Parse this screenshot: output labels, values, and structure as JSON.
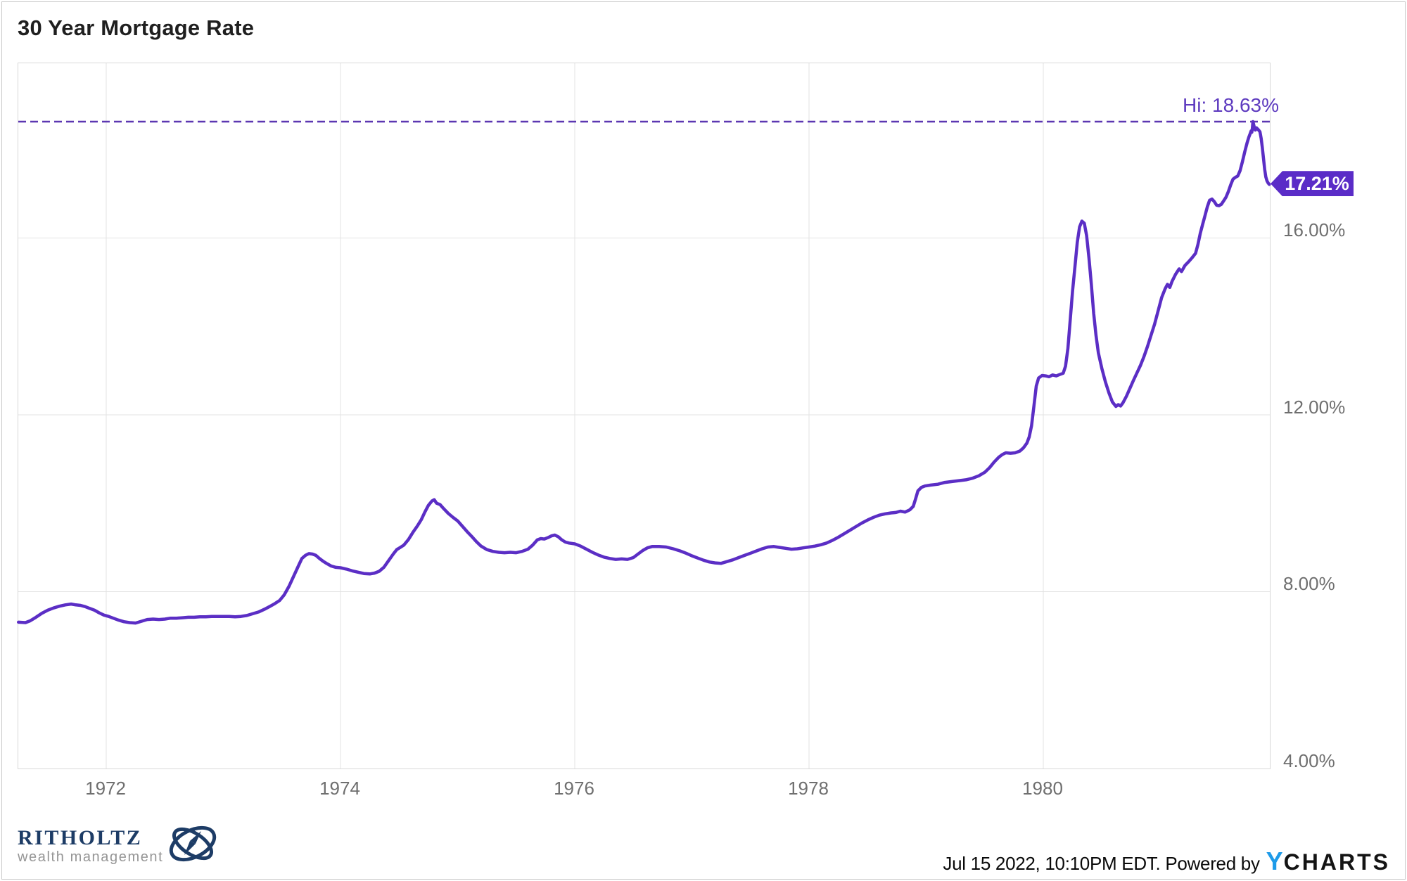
{
  "chart_data": {
    "type": "line",
    "title": "30 Year Mortgage Rate",
    "xlabel": "",
    "ylabel": "",
    "x_min": 1971.249,
    "x_max": 1981.934,
    "y_axis_top": 19.95,
    "y_axis_bottom": 4.0,
    "grid": true,
    "line_color": "#5b2ec5",
    "grid_color": "#e3e3e3",
    "dash_color": "#5c37b1",
    "hi_text_color": "#5e3bbf",
    "badge_color": "#5a2cc7",
    "x_ticks": [
      {
        "label": "1972",
        "value": 1972
      },
      {
        "label": "1974",
        "value": 1974
      },
      {
        "label": "1976",
        "value": 1976
      },
      {
        "label": "1978",
        "value": 1978
      },
      {
        "label": "1980",
        "value": 1980
      }
    ],
    "y_ticks": [
      {
        "label": "16.00%",
        "value": 16
      },
      {
        "label": "12.00%",
        "value": 12
      },
      {
        "label": "8.00%",
        "value": 8
      },
      {
        "label": "4.00%",
        "value": 4
      }
    ],
    "high_annotation": {
      "label": "Hi: 18.63%",
      "value": 18.63
    },
    "last_value_badge": {
      "label": "17.21%",
      "value": 17.21
    },
    "points": [
      [
        1971.25,
        7.31
      ],
      [
        1971.31,
        7.3
      ],
      [
        1971.35,
        7.34
      ],
      [
        1971.4,
        7.42
      ],
      [
        1971.45,
        7.51
      ],
      [
        1971.5,
        7.58
      ],
      [
        1971.55,
        7.63
      ],
      [
        1971.6,
        7.67
      ],
      [
        1971.65,
        7.7
      ],
      [
        1971.7,
        7.72
      ],
      [
        1971.74,
        7.7
      ],
      [
        1971.78,
        7.69
      ],
      [
        1971.82,
        7.66
      ],
      [
        1971.86,
        7.62
      ],
      [
        1971.9,
        7.58
      ],
      [
        1971.94,
        7.52
      ],
      [
        1971.98,
        7.47
      ],
      [
        1972.02,
        7.44
      ],
      [
        1972.06,
        7.4
      ],
      [
        1972.1,
        7.36
      ],
      [
        1972.15,
        7.32
      ],
      [
        1972.2,
        7.3
      ],
      [
        1972.25,
        7.29
      ],
      [
        1972.3,
        7.33
      ],
      [
        1972.35,
        7.37
      ],
      [
        1972.4,
        7.38
      ],
      [
        1972.45,
        7.37
      ],
      [
        1972.5,
        7.38
      ],
      [
        1972.55,
        7.4
      ],
      [
        1972.6,
        7.4
      ],
      [
        1972.65,
        7.41
      ],
      [
        1972.7,
        7.42
      ],
      [
        1972.75,
        7.42
      ],
      [
        1972.8,
        7.43
      ],
      [
        1972.85,
        7.43
      ],
      [
        1972.9,
        7.44
      ],
      [
        1972.95,
        7.44
      ],
      [
        1973.0,
        7.44
      ],
      [
        1973.05,
        7.44
      ],
      [
        1973.1,
        7.43
      ],
      [
        1973.15,
        7.44
      ],
      [
        1973.2,
        7.46
      ],
      [
        1973.25,
        7.5
      ],
      [
        1973.3,
        7.54
      ],
      [
        1973.35,
        7.6
      ],
      [
        1973.4,
        7.67
      ],
      [
        1973.44,
        7.73
      ],
      [
        1973.48,
        7.8
      ],
      [
        1973.52,
        7.93
      ],
      [
        1973.56,
        8.12
      ],
      [
        1973.6,
        8.35
      ],
      [
        1973.64,
        8.58
      ],
      [
        1973.67,
        8.75
      ],
      [
        1973.7,
        8.82
      ],
      [
        1973.73,
        8.86
      ],
      [
        1973.76,
        8.85
      ],
      [
        1973.79,
        8.82
      ],
      [
        1973.82,
        8.75
      ],
      [
        1973.85,
        8.69
      ],
      [
        1973.88,
        8.64
      ],
      [
        1973.92,
        8.58
      ],
      [
        1973.96,
        8.55
      ],
      [
        1974.0,
        8.54
      ],
      [
        1974.05,
        8.51
      ],
      [
        1974.1,
        8.47
      ],
      [
        1974.15,
        8.44
      ],
      [
        1974.2,
        8.41
      ],
      [
        1974.25,
        8.4
      ],
      [
        1974.29,
        8.42
      ],
      [
        1974.33,
        8.46
      ],
      [
        1974.37,
        8.55
      ],
      [
        1974.41,
        8.7
      ],
      [
        1974.45,
        8.85
      ],
      [
        1974.48,
        8.95
      ],
      [
        1974.51,
        9.0
      ],
      [
        1974.54,
        9.05
      ],
      [
        1974.58,
        9.18
      ],
      [
        1974.62,
        9.35
      ],
      [
        1974.66,
        9.5
      ],
      [
        1974.69,
        9.63
      ],
      [
        1974.72,
        9.8
      ],
      [
        1974.75,
        9.95
      ],
      [
        1974.78,
        10.05
      ],
      [
        1974.8,
        10.08
      ],
      [
        1974.82,
        10.0
      ],
      [
        1974.85,
        9.97
      ],
      [
        1974.88,
        9.88
      ],
      [
        1974.92,
        9.77
      ],
      [
        1974.96,
        9.68
      ],
      [
        1975.0,
        9.6
      ],
      [
        1975.04,
        9.48
      ],
      [
        1975.08,
        9.36
      ],
      [
        1975.12,
        9.25
      ],
      [
        1975.16,
        9.13
      ],
      [
        1975.2,
        9.03
      ],
      [
        1975.25,
        8.95
      ],
      [
        1975.3,
        8.91
      ],
      [
        1975.35,
        8.89
      ],
      [
        1975.4,
        8.88
      ],
      [
        1975.45,
        8.89
      ],
      [
        1975.5,
        8.88
      ],
      [
        1975.55,
        8.91
      ],
      [
        1975.6,
        8.96
      ],
      [
        1975.64,
        9.05
      ],
      [
        1975.68,
        9.17
      ],
      [
        1975.71,
        9.2
      ],
      [
        1975.74,
        9.19
      ],
      [
        1975.77,
        9.22
      ],
      [
        1975.8,
        9.26
      ],
      [
        1975.83,
        9.28
      ],
      [
        1975.86,
        9.24
      ],
      [
        1975.89,
        9.17
      ],
      [
        1975.92,
        9.12
      ],
      [
        1975.95,
        9.1
      ],
      [
        1976.0,
        9.08
      ],
      [
        1976.05,
        9.03
      ],
      [
        1976.1,
        8.96
      ],
      [
        1976.15,
        8.89
      ],
      [
        1976.2,
        8.83
      ],
      [
        1976.25,
        8.78
      ],
      [
        1976.3,
        8.75
      ],
      [
        1976.35,
        8.73
      ],
      [
        1976.4,
        8.74
      ],
      [
        1976.45,
        8.73
      ],
      [
        1976.5,
        8.77
      ],
      [
        1976.54,
        8.85
      ],
      [
        1976.58,
        8.93
      ],
      [
        1976.62,
        8.99
      ],
      [
        1976.66,
        9.02
      ],
      [
        1976.72,
        9.02
      ],
      [
        1976.78,
        9.01
      ],
      [
        1976.84,
        8.97
      ],
      [
        1976.9,
        8.92
      ],
      [
        1976.95,
        8.87
      ],
      [
        1977.0,
        8.81
      ],
      [
        1977.05,
        8.76
      ],
      [
        1977.1,
        8.71
      ],
      [
        1977.15,
        8.67
      ],
      [
        1977.2,
        8.65
      ],
      [
        1977.25,
        8.64
      ],
      [
        1977.3,
        8.68
      ],
      [
        1977.35,
        8.72
      ],
      [
        1977.4,
        8.77
      ],
      [
        1977.45,
        8.82
      ],
      [
        1977.5,
        8.87
      ],
      [
        1977.55,
        8.92
      ],
      [
        1977.6,
        8.97
      ],
      [
        1977.65,
        9.01
      ],
      [
        1977.7,
        9.02
      ],
      [
        1977.75,
        9.0
      ],
      [
        1977.8,
        8.98
      ],
      [
        1977.85,
        8.96
      ],
      [
        1977.9,
        8.97
      ],
      [
        1977.95,
        8.99
      ],
      [
        1978.0,
        9.01
      ],
      [
        1978.05,
        9.03
      ],
      [
        1978.1,
        9.06
      ],
      [
        1978.15,
        9.1
      ],
      [
        1978.2,
        9.16
      ],
      [
        1978.25,
        9.23
      ],
      [
        1978.3,
        9.31
      ],
      [
        1978.35,
        9.39
      ],
      [
        1978.4,
        9.47
      ],
      [
        1978.45,
        9.55
      ],
      [
        1978.5,
        9.62
      ],
      [
        1978.55,
        9.68
      ],
      [
        1978.6,
        9.73
      ],
      [
        1978.65,
        9.76
      ],
      [
        1978.7,
        9.78
      ],
      [
        1978.74,
        9.79
      ],
      [
        1978.78,
        9.82
      ],
      [
        1978.82,
        9.8
      ],
      [
        1978.86,
        9.85
      ],
      [
        1978.89,
        9.93
      ],
      [
        1978.91,
        10.1
      ],
      [
        1978.93,
        10.28
      ],
      [
        1978.96,
        10.36
      ],
      [
        1978.99,
        10.39
      ],
      [
        1979.04,
        10.41
      ],
      [
        1979.1,
        10.43
      ],
      [
        1979.16,
        10.47
      ],
      [
        1979.22,
        10.49
      ],
      [
        1979.28,
        10.51
      ],
      [
        1979.34,
        10.53
      ],
      [
        1979.4,
        10.57
      ],
      [
        1979.45,
        10.62
      ],
      [
        1979.5,
        10.7
      ],
      [
        1979.54,
        10.8
      ],
      [
        1979.58,
        10.93
      ],
      [
        1979.62,
        11.04
      ],
      [
        1979.65,
        11.1
      ],
      [
        1979.68,
        11.14
      ],
      [
        1979.72,
        11.13
      ],
      [
        1979.76,
        11.14
      ],
      [
        1979.8,
        11.18
      ],
      [
        1979.83,
        11.25
      ],
      [
        1979.86,
        11.36
      ],
      [
        1979.88,
        11.5
      ],
      [
        1979.9,
        11.75
      ],
      [
        1979.92,
        12.2
      ],
      [
        1979.94,
        12.65
      ],
      [
        1979.96,
        12.83
      ],
      [
        1979.99,
        12.89
      ],
      [
        1980.02,
        12.88
      ],
      [
        1980.05,
        12.86
      ],
      [
        1980.08,
        12.9
      ],
      [
        1980.11,
        12.88
      ],
      [
        1980.14,
        12.91
      ],
      [
        1980.17,
        12.94
      ],
      [
        1980.19,
        13.1
      ],
      [
        1980.21,
        13.5
      ],
      [
        1980.23,
        14.15
      ],
      [
        1980.25,
        14.8
      ],
      [
        1980.27,
        15.35
      ],
      [
        1980.29,
        15.9
      ],
      [
        1980.31,
        16.25
      ],
      [
        1980.33,
        16.38
      ],
      [
        1980.35,
        16.33
      ],
      [
        1980.37,
        16.05
      ],
      [
        1980.39,
        15.55
      ],
      [
        1980.41,
        14.95
      ],
      [
        1980.43,
        14.3
      ],
      [
        1980.45,
        13.8
      ],
      [
        1980.47,
        13.4
      ],
      [
        1980.5,
        13.05
      ],
      [
        1980.53,
        12.75
      ],
      [
        1980.56,
        12.5
      ],
      [
        1980.59,
        12.29
      ],
      [
        1980.62,
        12.19
      ],
      [
        1980.64,
        12.23
      ],
      [
        1980.66,
        12.2
      ],
      [
        1980.68,
        12.27
      ],
      [
        1980.71,
        12.42
      ],
      [
        1980.74,
        12.6
      ],
      [
        1980.77,
        12.78
      ],
      [
        1980.8,
        12.95
      ],
      [
        1980.83,
        13.12
      ],
      [
        1980.86,
        13.32
      ],
      [
        1980.89,
        13.55
      ],
      [
        1980.92,
        13.8
      ],
      [
        1980.95,
        14.05
      ],
      [
        1980.98,
        14.35
      ],
      [
        1981.01,
        14.65
      ],
      [
        1981.04,
        14.85
      ],
      [
        1981.06,
        14.95
      ],
      [
        1981.08,
        14.88
      ],
      [
        1981.1,
        15.02
      ],
      [
        1981.13,
        15.18
      ],
      [
        1981.16,
        15.3
      ],
      [
        1981.18,
        15.24
      ],
      [
        1981.21,
        15.38
      ],
      [
        1981.24,
        15.46
      ],
      [
        1981.27,
        15.55
      ],
      [
        1981.3,
        15.65
      ],
      [
        1981.32,
        15.85
      ],
      [
        1981.34,
        16.1
      ],
      [
        1981.36,
        16.3
      ],
      [
        1981.38,
        16.5
      ],
      [
        1981.4,
        16.7
      ],
      [
        1981.42,
        16.85
      ],
      [
        1981.44,
        16.88
      ],
      [
        1981.46,
        16.82
      ],
      [
        1981.48,
        16.74
      ],
      [
        1981.5,
        16.73
      ],
      [
        1981.52,
        16.76
      ],
      [
        1981.54,
        16.84
      ],
      [
        1981.56,
        16.92
      ],
      [
        1981.58,
        17.05
      ],
      [
        1981.6,
        17.2
      ],
      [
        1981.62,
        17.33
      ],
      [
        1981.64,
        17.37
      ],
      [
        1981.66,
        17.4
      ],
      [
        1981.68,
        17.52
      ],
      [
        1981.7,
        17.72
      ],
      [
        1981.72,
        17.95
      ],
      [
        1981.74,
        18.15
      ],
      [
        1981.755,
        18.28
      ],
      [
        1981.765,
        18.35
      ],
      [
        1981.775,
        18.42
      ],
      [
        1981.78,
        18.39
      ],
      [
        1981.785,
        18.48
      ],
      [
        1981.79,
        18.63
      ],
      [
        1981.8,
        18.52
      ],
      [
        1981.81,
        18.44
      ],
      [
        1981.82,
        18.49
      ],
      [
        1981.835,
        18.45
      ],
      [
        1981.85,
        18.4
      ],
      [
        1981.86,
        18.25
      ],
      [
        1981.87,
        18.05
      ],
      [
        1981.88,
        17.8
      ],
      [
        1981.89,
        17.55
      ],
      [
        1981.9,
        17.38
      ],
      [
        1981.91,
        17.29
      ],
      [
        1981.92,
        17.24
      ],
      [
        1981.93,
        17.21
      ]
    ]
  },
  "footer": {
    "logo_name": "RITHOLTZ",
    "logo_subtitle": "wealth management",
    "timestamp": "Jul 15 2022, 10:10PM EDT. Powered by",
    "ycharts_y": "Y",
    "ycharts_charts": "CHARTS"
  }
}
